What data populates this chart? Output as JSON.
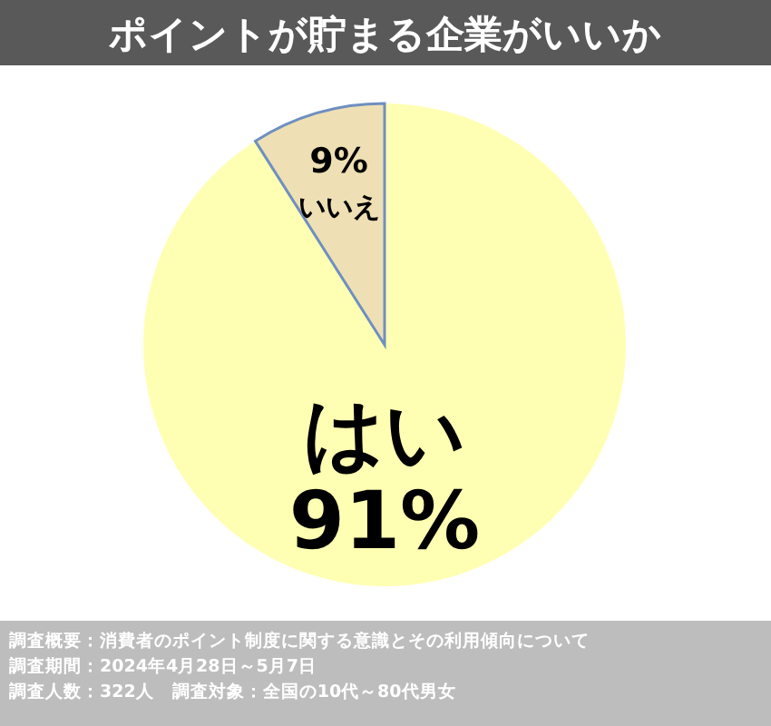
{
  "chart_data": {
    "type": "pie",
    "title": "ポイントが貯まる企業がいいか",
    "categories": [
      "はい",
      "いいえ"
    ],
    "values": [
      91,
      9
    ],
    "colors": [
      "#ffffb3",
      "#eee0b4"
    ],
    "value_labels": [
      "91%",
      "9%"
    ],
    "annotations": [
      "調査概要：消費者のポイント制度に関する意識とその利用傾向について",
      "調査期間：2024年4月28日～5月7日",
      "調査人数：322人　調査対象：全国の10代～80代男女"
    ]
  }
}
